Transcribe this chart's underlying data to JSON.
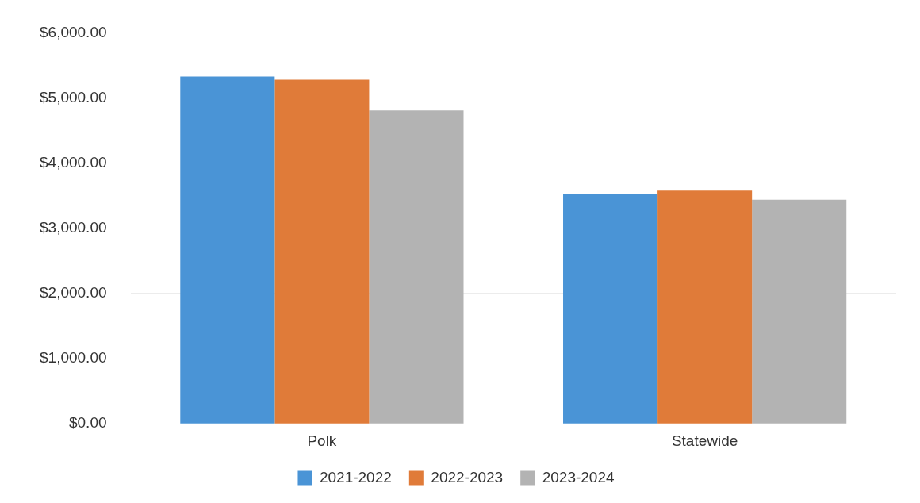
{
  "chart_data": {
    "type": "bar",
    "categories": [
      "Polk",
      "Statewide"
    ],
    "series": [
      {
        "name": "2021-2022",
        "color": "#4a94d6",
        "values": [
          5330,
          3520
        ]
      },
      {
        "name": "2022-2023",
        "color": "#e07b39",
        "values": [
          5280,
          3580
        ]
      },
      {
        "name": "2023-2024",
        "color": "#b3b3b3",
        "values": [
          4810,
          3440
        ]
      }
    ],
    "ylim": [
      0,
      6000
    ],
    "yticks": [
      {
        "value": 0,
        "label": "$0.00"
      },
      {
        "value": 1000,
        "label": "$1,000.00"
      },
      {
        "value": 2000,
        "label": "$2,000.00"
      },
      {
        "value": 3000,
        "label": "$3,000.00"
      },
      {
        "value": 4000,
        "label": "$4,000.00"
      },
      {
        "value": 5000,
        "label": "$5,000.00"
      },
      {
        "value": 6000,
        "label": "$6,000.00"
      }
    ],
    "grid": "y",
    "legend": "bottom"
  }
}
